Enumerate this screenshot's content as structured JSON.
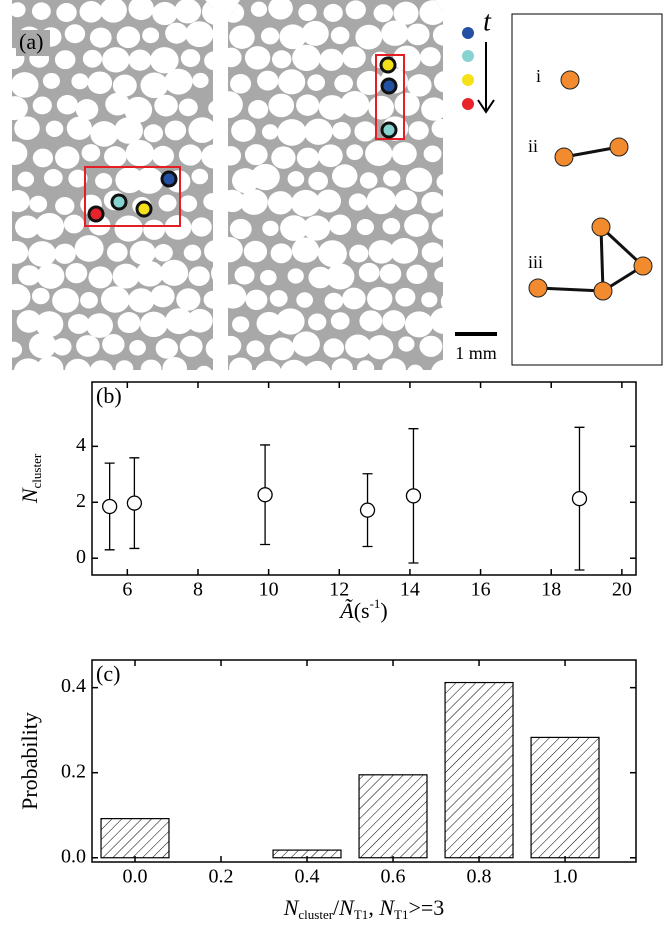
{
  "figure_a": {
    "label": "(a)",
    "time_label": "t",
    "cluster_labels": [
      "i",
      "ii",
      "iii"
    ],
    "scale_bar": "1 mm"
  },
  "chart_data": [
    {
      "type": "errorbar",
      "panel_label": "(b)",
      "y_label": {
        "main": "N",
        "sub": "cluster"
      },
      "x_label": [
        "Ã",
        "(s",
        "-1",
        ")"
      ],
      "x": [
        5.5,
        6.2,
        9.9,
        12.8,
        14.1,
        18.8
      ],
      "values": [
        1.85,
        1.97,
        2.27,
        1.72,
        2.23,
        2.13
      ],
      "errors": [
        1.55,
        1.62,
        1.78,
        1.3,
        2.4,
        2.55
      ],
      "xlim": [
        5,
        20.4
      ],
      "xticks": [
        6,
        8,
        10,
        12,
        14,
        16,
        18,
        20
      ],
      "ylim": [
        -0.6,
        6.3
      ],
      "yticks": [
        0,
        2,
        4
      ]
    },
    {
      "type": "bar",
      "panel_label": "(c)",
      "y_label": "Probability",
      "x_label": [
        "N",
        "cluster",
        "/",
        "N",
        "T1",
        ", ",
        "N",
        "T1",
        ">=3"
      ],
      "x": [
        0,
        0.2,
        0.4,
        0.6,
        0.8,
        1.0
      ],
      "values": [
        0.092,
        0,
        0.018,
        0.195,
        0.412,
        0.283
      ],
      "xlim": [
        -0.1,
        1.165
      ],
      "xticks": [
        {
          "value": 0,
          "label": "0.0"
        },
        {
          "value": 0.2,
          "label": "0.2"
        },
        {
          "value": 0.4,
          "label": "0.4"
        },
        {
          "value": 0.6,
          "label": "0.6"
        },
        {
          "value": 0.8,
          "label": "0.8"
        },
        {
          "value": 1.0,
          "label": "1.0"
        }
      ],
      "ylim": [
        -0.01,
        0.465
      ],
      "yticks": [
        {
          "value": 0,
          "label": "0.0"
        },
        {
          "value": 0.2,
          "label": "0.2"
        },
        {
          "value": 0.4,
          "label": "0.4"
        }
      ]
    }
  ]
}
